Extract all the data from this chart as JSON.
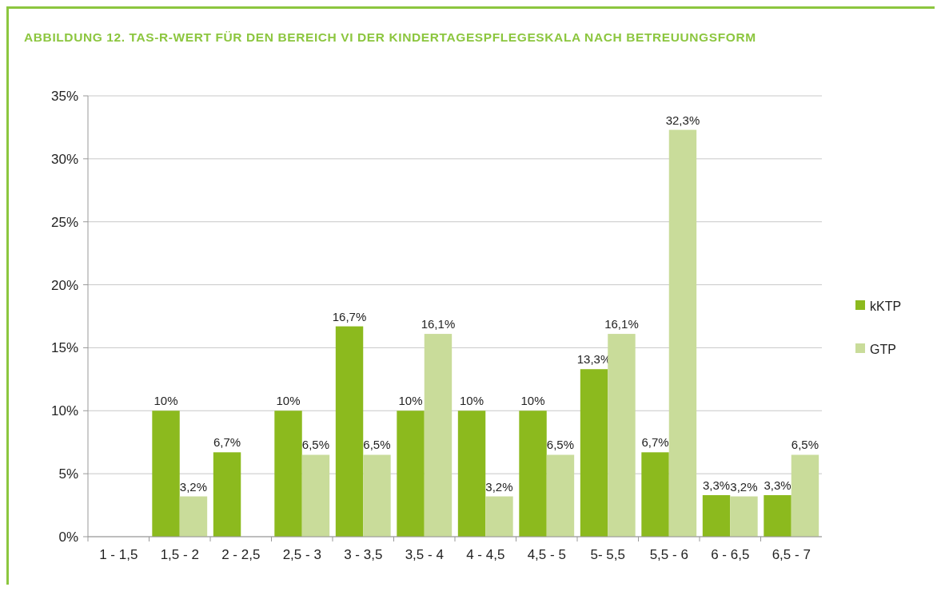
{
  "chart_data": {
    "type": "bar",
    "title": "ABBILDUNG 12. TAS-R-WERT FÜR DEN BEREICH VI DER KINDERTAGESPFLEGESKALA NACH BETREUUNGSFORM",
    "categories": [
      "1 - 1,5",
      "1,5 - 2",
      "2 - 2,5",
      "2,5 - 3",
      "3 - 3,5",
      "3,5 - 4",
      "4 - 4,5",
      "4,5 - 5",
      "5- 5,5",
      "5,5 - 6",
      "6 - 6,5",
      "6,5 - 7"
    ],
    "series": [
      {
        "name": "kKTP",
        "color": "#8cba1e",
        "values": [
          null,
          10,
          6.7,
          10,
          16.7,
          10,
          10,
          10,
          13.3,
          6.7,
          3.3,
          3.3
        ],
        "value_labels": [
          null,
          "10%",
          "6,7%",
          "10%",
          "16,7%",
          "10%",
          "10%",
          "10%",
          "13,3%",
          "6,7%",
          "3,3%",
          "3,3%"
        ]
      },
      {
        "name": "GTP",
        "color": "#c9dc9a",
        "values": [
          null,
          3.2,
          null,
          6.5,
          6.5,
          16.1,
          3.2,
          6.5,
          16.1,
          32.3,
          3.2,
          6.5
        ],
        "value_labels": [
          null,
          "3,2%",
          null,
          "6,5%",
          "6,5%",
          "16,1%",
          "3,2%",
          "6,5%",
          "16,1%",
          "32,3%",
          "3,2%",
          "6,5%"
        ]
      }
    ],
    "ylim": [
      0,
      35
    ],
    "yticks": [
      {
        "value": 0,
        "label": "0%"
      },
      {
        "value": 5,
        "label": "5%"
      },
      {
        "value": 10,
        "label": "10%"
      },
      {
        "value": 15,
        "label": "15%"
      },
      {
        "value": 20,
        "label": "20%"
      },
      {
        "value": 25,
        "label": "25%"
      },
      {
        "value": 30,
        "label": "30%"
      },
      {
        "value": 35,
        "label": "35%"
      }
    ],
    "grid": "y",
    "legend": "right"
  }
}
